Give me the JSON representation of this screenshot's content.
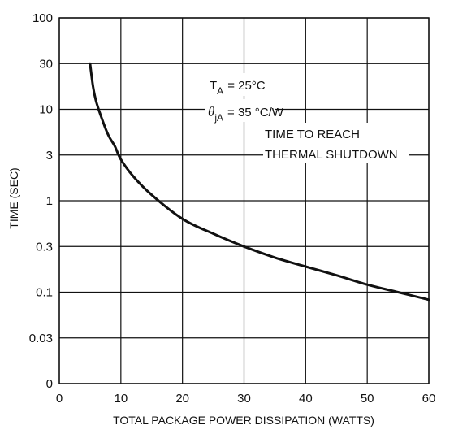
{
  "chart_data": {
    "type": "line",
    "title": "",
    "xlabel": "TOTAL PACKAGE POWER DISSIPATION (WATTS)",
    "ylabel": "TIME (SEC)",
    "xlim": [
      0,
      60
    ],
    "x_ticks": [
      0,
      10,
      20,
      30,
      40,
      50,
      60
    ],
    "y_ticks": [
      "0",
      "0.03",
      "0.1",
      "0.3",
      "1",
      "3",
      "10",
      "30",
      "100"
    ],
    "y_scale": "log",
    "grid": true,
    "annotations": {
      "ta_symbol": "T",
      "ta_subscript": "A",
      "ta_value": "= 25°C",
      "theta_symbol": "θ",
      "theta_subscript": "jA",
      "theta_value": "= 35 °C/W",
      "note_line1": "TIME TO REACH",
      "note_line2": "THERMAL SHUTDOWN"
    },
    "series": [
      {
        "x": [
          5,
          5.5,
          6,
          7,
          8,
          9,
          10,
          12,
          15,
          20,
          25,
          30,
          35,
          40,
          45,
          50,
          55,
          60
        ],
        "y": [
          30,
          17,
          12,
          7.5,
          5,
          3.8,
          2.7,
          1.8,
          1.15,
          0.62,
          0.42,
          0.3,
          0.23,
          0.185,
          0.15,
          0.12,
          0.1,
          0.082
        ]
      }
    ]
  }
}
